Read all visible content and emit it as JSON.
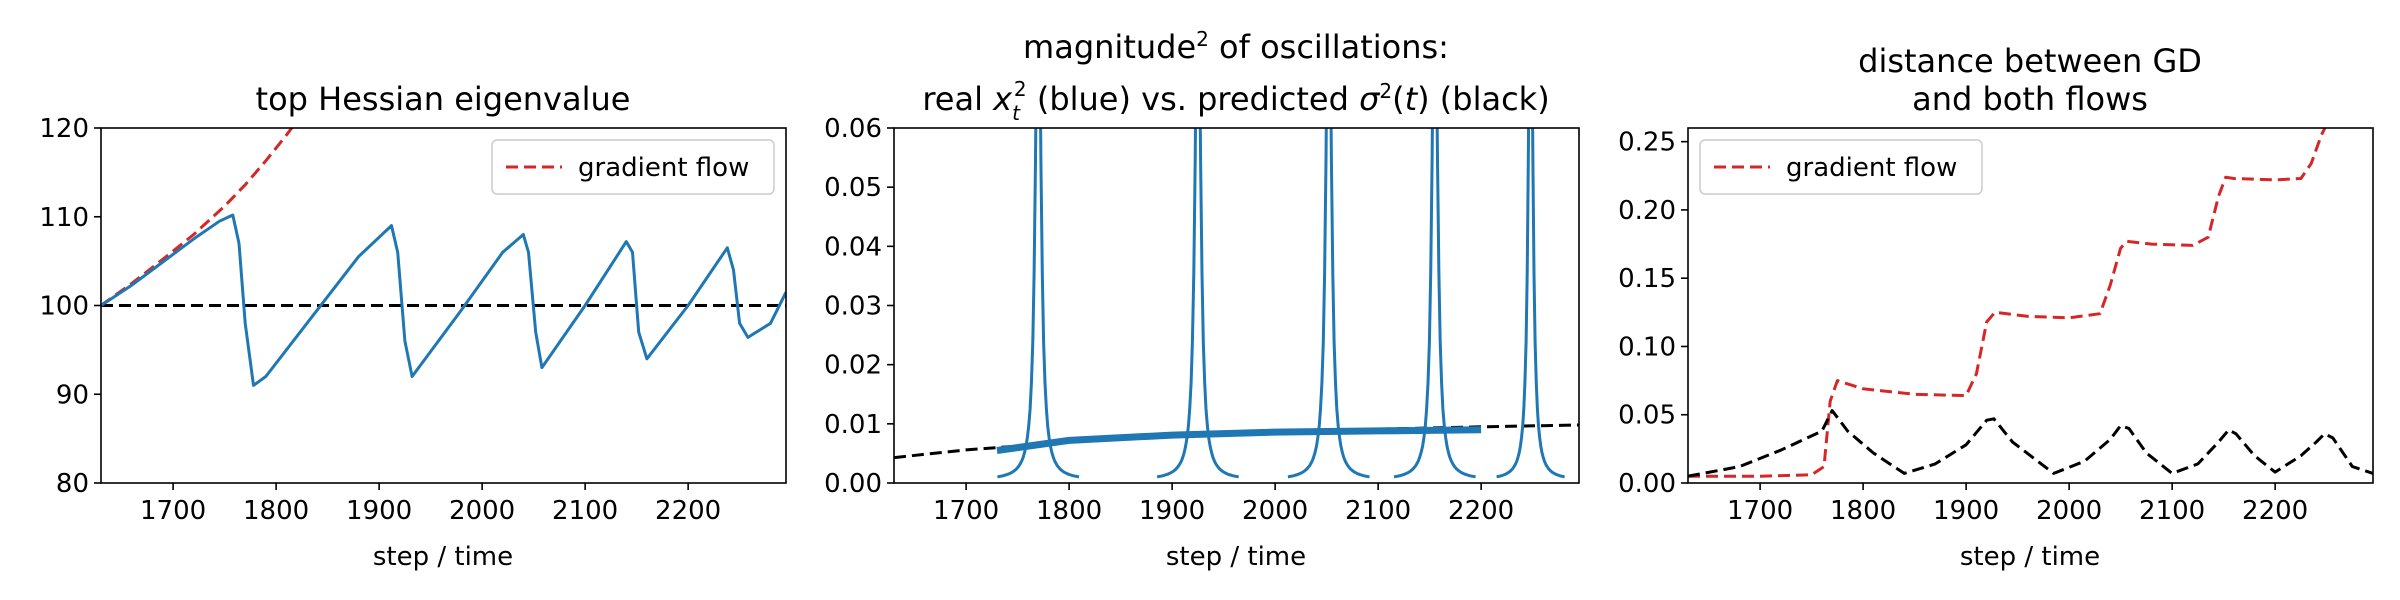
{
  "figure": {
    "panels": [
      {
        "title_lines": [
          "top Hessian eigenvalue"
        ],
        "xlabel": "step / time"
      },
      {
        "title_lines": [
          "magnitude² of oscillations:",
          "real x_t² (blue) vs. predicted σ²(t) (black)"
        ],
        "xlabel": "step / time"
      },
      {
        "title_lines": [
          "distance between GD",
          "and both flows"
        ],
        "xlabel": "step / time"
      }
    ]
  },
  "chart_data": [
    {
      "type": "line",
      "title": "top Hessian eigenvalue",
      "xlabel": "step / time",
      "ylabel": "",
      "xlim": [
        1630,
        2295
      ],
      "ylim": [
        80,
        120
      ],
      "xticks": [
        1700,
        1800,
        1900,
        2000,
        2100,
        2200
      ],
      "yticks": [
        80,
        90,
        100,
        110,
        120
      ],
      "legend": {
        "position": "top-right",
        "entries": [
          "gradient flow"
        ]
      },
      "series": [
        {
          "name": "gradient flow",
          "style": "dashed",
          "color": "#d62728",
          "x": [
            1630,
            1660,
            1690,
            1720,
            1750,
            1770,
            1790,
            1810,
            1830
          ],
          "y": [
            100,
            102.5,
            105.2,
            108.0,
            111.2,
            113.6,
            116.3,
            119.2,
            122.3
          ]
        },
        {
          "style": "dashed",
          "color": "#000000",
          "x": [
            1630,
            2295
          ],
          "y": [
            100,
            100
          ]
        },
        {
          "style": "solid",
          "color": "#1f77b4",
          "x": [
            1630,
            1660,
            1690,
            1720,
            1745,
            1758,
            1764,
            1770,
            1778,
            1790,
            1840,
            1880,
            1912,
            1918,
            1925,
            1932,
            1980,
            2020,
            2040,
            2045,
            2052,
            2058,
            2100,
            2140,
            2146,
            2152,
            2160,
            2200,
            2238,
            2244,
            2250,
            2258,
            2280,
            2295
          ],
          "y": [
            100,
            102.3,
            104.9,
            107.5,
            109.5,
            110.2,
            107,
            98,
            91,
            92,
            99.5,
            105.5,
            109.0,
            106,
            96,
            92,
            99.5,
            106,
            108.0,
            106,
            97,
            93,
            100,
            107.2,
            106,
            97,
            94,
            100,
            106.5,
            104,
            98,
            96.4,
            98,
            101.5
          ]
        }
      ]
    },
    {
      "type": "line",
      "title": "magnitude² of oscillations: real x_t² (blue) vs. predicted σ²(t) (black)",
      "xlabel": "step / time",
      "ylabel": "",
      "xlim": [
        1630,
        2295
      ],
      "ylim": [
        0,
        0.06
      ],
      "xticks": [
        1700,
        1800,
        1900,
        2000,
        2100,
        2200
      ],
      "yticks": [
        0,
        0.01,
        0.02,
        0.03,
        0.04,
        0.05,
        0.06
      ],
      "series": [
        {
          "style": "dashed",
          "color": "#000000",
          "x": [
            1630,
            1700,
            1800,
            1900,
            2000,
            2100,
            2200,
            2295
          ],
          "y": [
            0.0043,
            0.0056,
            0.0069,
            0.0079,
            0.0086,
            0.0091,
            0.0095,
            0.0098
          ]
        },
        {
          "style": "solid-thick",
          "color": "#1f77b4",
          "x": [
            1730,
            1800,
            1900,
            2000,
            2100,
            2200
          ],
          "y": [
            0.0055,
            0.0072,
            0.0081,
            0.0086,
            0.0088,
            0.009
          ]
        },
        {
          "style": "solid",
          "color": "#1f77b4",
          "spikes": [
            {
              "center": 1770,
              "halfwidth": 6,
              "base": 0.0005,
              "peak": 0.06
            },
            {
              "center": 1925,
              "halfwidth": 6,
              "base": 0.0005,
              "peak": 0.06
            },
            {
              "center": 2052,
              "halfwidth": 6,
              "base": 0.0005,
              "peak": 0.06
            },
            {
              "center": 2155,
              "halfwidth": 6,
              "base": 0.0005,
              "peak": 0.06
            },
            {
              "center": 2248,
              "halfwidth": 5,
              "base": 0.0005,
              "peak": 0.06
            }
          ]
        }
      ]
    },
    {
      "type": "line",
      "title": "distance between GD and both flows",
      "xlabel": "step / time",
      "ylabel": "",
      "xlim": [
        1630,
        2295
      ],
      "ylim": [
        0,
        0.26
      ],
      "xticks": [
        1700,
        1800,
        1900,
        2000,
        2100,
        2200
      ],
      "yticks": [
        0.0,
        0.05,
        0.1,
        0.15,
        0.2,
        0.25
      ],
      "legend": {
        "position": "top-left",
        "entries": [
          "gradient flow"
        ]
      },
      "series": [
        {
          "name": "gradient flow",
          "style": "dashed",
          "color": "#d62728",
          "x": [
            1630,
            1700,
            1750,
            1762,
            1768,
            1775,
            1800,
            1850,
            1900,
            1910,
            1920,
            1928,
            1960,
            2000,
            2030,
            2040,
            2050,
            2056,
            2080,
            2120,
            2135,
            2145,
            2152,
            2160,
            2200,
            2225,
            2235,
            2245,
            2255
          ],
          "y": [
            0.005,
            0.005,
            0.006,
            0.012,
            0.06,
            0.075,
            0.069,
            0.065,
            0.064,
            0.08,
            0.118,
            0.125,
            0.122,
            0.121,
            0.124,
            0.145,
            0.172,
            0.177,
            0.175,
            0.174,
            0.18,
            0.21,
            0.224,
            0.223,
            0.222,
            0.223,
            0.234,
            0.255,
            0.27
          ]
        },
        {
          "style": "dashed",
          "color": "#000000",
          "x": [
            1630,
            1680,
            1720,
            1760,
            1770,
            1785,
            1810,
            1840,
            1870,
            1900,
            1920,
            1927,
            1945,
            1985,
            2015,
            2040,
            2050,
            2058,
            2075,
            2100,
            2125,
            2145,
            2155,
            2162,
            2180,
            2200,
            2225,
            2240,
            2248,
            2256,
            2275,
            2295
          ],
          "y": [
            0.005,
            0.012,
            0.024,
            0.038,
            0.053,
            0.038,
            0.022,
            0.007,
            0.014,
            0.028,
            0.046,
            0.047,
            0.03,
            0.007,
            0.016,
            0.032,
            0.042,
            0.04,
            0.022,
            0.007,
            0.014,
            0.03,
            0.039,
            0.036,
            0.02,
            0.008,
            0.02,
            0.03,
            0.036,
            0.033,
            0.012,
            0.007
          ]
        }
      ]
    }
  ]
}
